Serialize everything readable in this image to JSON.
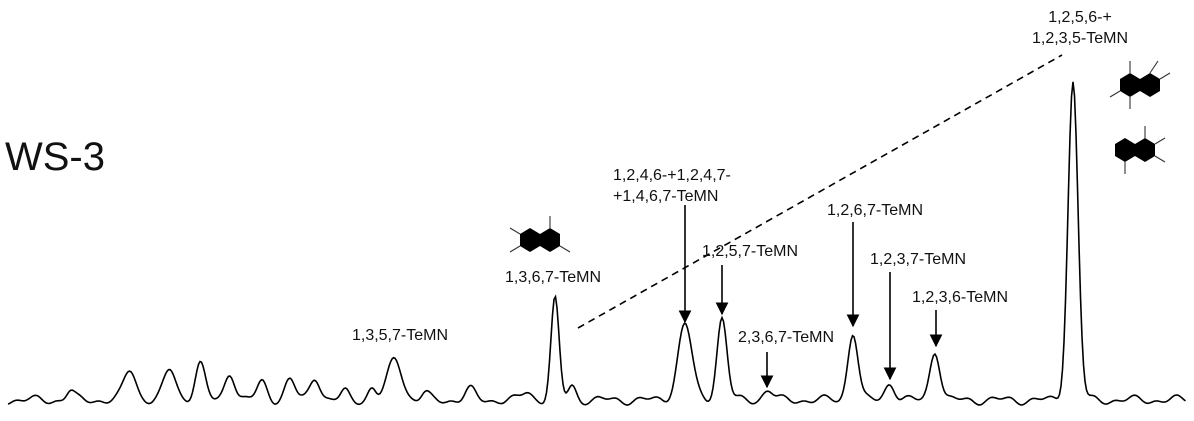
{
  "sample": "WS-3",
  "peaks": [
    {
      "lines": [
        "1,3,5,7-TeMN"
      ]
    },
    {
      "lines": [
        "1,3,6,7-TeMN"
      ]
    },
    {
      "lines": [
        "1,2,4,6-+1,2,4,7-",
        "+1,4,6,7-TeMN"
      ]
    },
    {
      "lines": [
        "1,2,5,7-TeMN"
      ]
    },
    {
      "lines": [
        "2,3,6,7-TeMN"
      ]
    },
    {
      "lines": [
        "1,2,6,7-TeMN"
      ]
    },
    {
      "lines": [
        "1,2,3,7-TeMN"
      ]
    },
    {
      "lines": [
        "1,2,3,6-TeMN"
      ]
    },
    {
      "lines": [
        "1,2,5,6-+",
        "1,2,3,5-TeMN"
      ]
    }
  ]
}
